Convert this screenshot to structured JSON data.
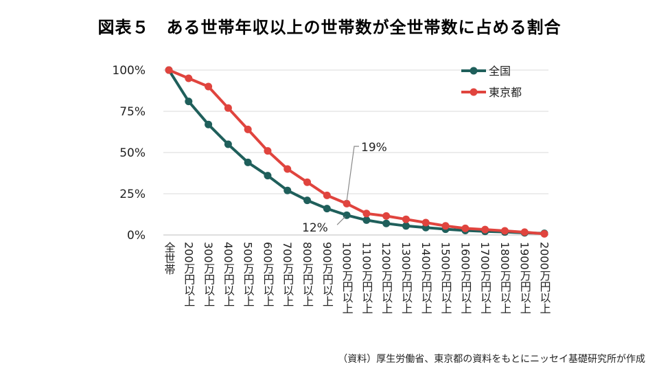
{
  "title": "図表５　ある世帯年収以上の世帯数が全世帯数に占める割合",
  "source": "（資料）厚生労働省、東京都の資料をもとにニッセイ基礎研究所が作成",
  "chart_data": {
    "type": "line",
    "categories": [
      "全世帯",
      "200万円以上",
      "300万円以上",
      "400万円以上",
      "500万円以上",
      "600万円以上",
      "700万円以上",
      "800万円以上",
      "900万円以上",
      "1000万円以上",
      "1100万円以上",
      "1200万円以上",
      "1300万円以上",
      "1400万円以上",
      "1500万円以上",
      "1600万円以上",
      "1700万円以上",
      "1800万円以上",
      "1900万円以上",
      "2000万円以上"
    ],
    "series": [
      {
        "name": "全国",
        "color": "#1f5f5b",
        "values": [
          100,
          81,
          67,
          55,
          44,
          36,
          27,
          21,
          16,
          12,
          9,
          7,
          5.5,
          4.5,
          3.5,
          2.7,
          2.2,
          1.8,
          1.3,
          1
        ]
      },
      {
        "name": "東京都",
        "color": "#e0443e",
        "values": [
          100,
          95,
          90,
          77,
          64,
          51,
          40,
          32,
          24,
          19,
          13,
          11.5,
          9.5,
          7.5,
          5.5,
          4,
          3.3,
          2.5,
          1.7,
          0.7
        ]
      }
    ],
    "ylim": [
      0,
      100
    ],
    "yticks": [
      0,
      25,
      50,
      75,
      100
    ],
    "ytick_labels": [
      "0%",
      "25%",
      "50%",
      "75%",
      "100%"
    ],
    "legend_position": "top-right",
    "annotations": [
      {
        "text": "19%",
        "series": "東京都",
        "category": "1000万円以上"
      },
      {
        "text": "12%",
        "series": "全国",
        "category": "1000万円以上"
      }
    ]
  }
}
